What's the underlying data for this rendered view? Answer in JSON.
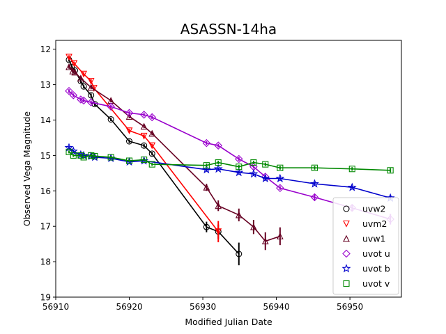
{
  "chart_data": {
    "type": "line",
    "title": "ASASSN-14ha",
    "xlabel": "Modified Julian Date",
    "ylabel": "Observed Vega Magnitude",
    "xlim": [
      56910,
      56957
    ],
    "ylim": [
      19,
      11.75
    ],
    "y_inverted": true,
    "xticks": [
      56910,
      56920,
      56930,
      56940,
      56950
    ],
    "yticks": [
      12,
      13,
      14,
      15,
      16,
      17,
      18,
      19
    ],
    "grid": false,
    "legend_position": "lower-right",
    "series": [
      {
        "name": "uvw2",
        "color": "#000000",
        "marker": "circle",
        "points": [
          {
            "x": 56911.8,
            "y": 12.3,
            "err": 0.05
          },
          {
            "x": 56912.2,
            "y": 12.5,
            "err": 0.05
          },
          {
            "x": 56912.6,
            "y": 12.6,
            "err": 0.05
          },
          {
            "x": 56913.4,
            "y": 12.9,
            "err": 0.05
          },
          {
            "x": 56913.8,
            "y": 13.05,
            "err": 0.05
          },
          {
            "x": 56914.8,
            "y": 13.3,
            "err": 0.05
          },
          {
            "x": 56915.3,
            "y": 13.55,
            "err": 0.05
          },
          {
            "x": 56917.5,
            "y": 13.98,
            "err": 0.05
          },
          {
            "x": 56920.0,
            "y": 14.6,
            "err": 0.05
          },
          {
            "x": 56922.0,
            "y": 14.72,
            "err": 0.05
          },
          {
            "x": 56923.1,
            "y": 14.95,
            "err": 0.05
          },
          {
            "x": 56930.5,
            "y": 17.02,
            "err": 0.15
          },
          {
            "x": 56932.1,
            "y": 17.15,
            "err": 0.2
          },
          {
            "x": 56934.9,
            "y": 17.78,
            "err": 0.32
          }
        ]
      },
      {
        "name": "uvm2",
        "color": "#ff0000",
        "marker": "triangle-down",
        "points": [
          {
            "x": 56911.8,
            "y": 12.22,
            "err": 0.05
          },
          {
            "x": 56912.5,
            "y": 12.4,
            "err": 0.05
          },
          {
            "x": 56913.8,
            "y": 12.7,
            "err": 0.05
          },
          {
            "x": 56914.8,
            "y": 12.9,
            "err": 0.05
          },
          {
            "x": 56915.2,
            "y": 13.1,
            "err": 0.05
          },
          {
            "x": 56920.0,
            "y": 14.3,
            "err": 0.05
          },
          {
            "x": 56922.0,
            "y": 14.45,
            "err": 0.05
          },
          {
            "x": 56923.1,
            "y": 14.72,
            "err": 0.05
          },
          {
            "x": 56932.1,
            "y": 17.15,
            "err": 0.3
          }
        ]
      },
      {
        "name": "uvw1",
        "color": "#660022",
        "marker": "triangle-up",
        "points": [
          {
            "x": 56911.8,
            "y": 12.5,
            "err": 0.05
          },
          {
            "x": 56912.3,
            "y": 12.62,
            "err": 0.05
          },
          {
            "x": 56912.6,
            "y": 12.65,
            "err": 0.05
          },
          {
            "x": 56913.4,
            "y": 12.82,
            "err": 0.05
          },
          {
            "x": 56914.8,
            "y": 13.08,
            "err": 0.05
          },
          {
            "x": 56917.5,
            "y": 13.45,
            "err": 0.05
          },
          {
            "x": 56920.0,
            "y": 13.9,
            "err": 0.05
          },
          {
            "x": 56922.0,
            "y": 14.18,
            "err": 0.05
          },
          {
            "x": 56923.1,
            "y": 14.38,
            "err": 0.05
          },
          {
            "x": 56930.5,
            "y": 15.9,
            "err": 0.1
          },
          {
            "x": 56932.1,
            "y": 16.42,
            "err": 0.15
          },
          {
            "x": 56934.9,
            "y": 16.68,
            "err": 0.18
          },
          {
            "x": 56936.9,
            "y": 17.02,
            "err": 0.2
          },
          {
            "x": 56938.5,
            "y": 17.42,
            "err": 0.25
          },
          {
            "x": 56940.5,
            "y": 17.28,
            "err": 0.25
          }
        ]
      },
      {
        "name": "uvot u",
        "color": "#9900cc",
        "marker": "diamond",
        "points": [
          {
            "x": 56911.8,
            "y": 13.18,
            "err": 0.05
          },
          {
            "x": 56912.4,
            "y": 13.3,
            "err": 0.05
          },
          {
            "x": 56913.4,
            "y": 13.42,
            "err": 0.05
          },
          {
            "x": 56913.8,
            "y": 13.45,
            "err": 0.05
          },
          {
            "x": 56914.8,
            "y": 13.5,
            "err": 0.05
          },
          {
            "x": 56917.5,
            "y": 13.62,
            "err": 0.05
          },
          {
            "x": 56920.0,
            "y": 13.8,
            "err": 0.05
          },
          {
            "x": 56922.0,
            "y": 13.85,
            "err": 0.05
          },
          {
            "x": 56923.1,
            "y": 13.92,
            "err": 0.05
          },
          {
            "x": 56930.5,
            "y": 14.65,
            "err": 0.05
          },
          {
            "x": 56932.1,
            "y": 14.72,
            "err": 0.05
          },
          {
            "x": 56934.9,
            "y": 15.1,
            "err": 0.05
          },
          {
            "x": 56936.9,
            "y": 15.32,
            "err": 0.05
          },
          {
            "x": 56938.5,
            "y": 15.6,
            "err": 0.05
          },
          {
            "x": 56940.5,
            "y": 15.92,
            "err": 0.05
          },
          {
            "x": 56945.2,
            "y": 16.18,
            "err": 0.08
          },
          {
            "x": 56950.3,
            "y": 16.48,
            "err": 0.1
          },
          {
            "x": 56955.5,
            "y": 16.8,
            "err": 0.15
          }
        ]
      },
      {
        "name": "uvot b",
        "color": "#0000cc",
        "marker": "star",
        "points": [
          {
            "x": 56911.8,
            "y": 14.78,
            "err": 0.04
          },
          {
            "x": 56912.4,
            "y": 14.88,
            "err": 0.04
          },
          {
            "x": 56913.4,
            "y": 14.98,
            "err": 0.04
          },
          {
            "x": 56913.8,
            "y": 15.0,
            "err": 0.04
          },
          {
            "x": 56914.8,
            "y": 15.02,
            "err": 0.04
          },
          {
            "x": 56915.3,
            "y": 15.05,
            "err": 0.04
          },
          {
            "x": 56917.5,
            "y": 15.08,
            "err": 0.04
          },
          {
            "x": 56920.0,
            "y": 15.18,
            "err": 0.04
          },
          {
            "x": 56922.0,
            "y": 15.15,
            "err": 0.04
          },
          {
            "x": 56930.5,
            "y": 15.4,
            "err": 0.04
          },
          {
            "x": 56932.1,
            "y": 15.38,
            "err": 0.04
          },
          {
            "x": 56934.9,
            "y": 15.48,
            "err": 0.04
          },
          {
            "x": 56936.9,
            "y": 15.52,
            "err": 0.04
          },
          {
            "x": 56938.5,
            "y": 15.65,
            "err": 0.04
          },
          {
            "x": 56940.5,
            "y": 15.65,
            "err": 0.04
          },
          {
            "x": 56945.2,
            "y": 15.8,
            "err": 0.05
          },
          {
            "x": 56950.3,
            "y": 15.9,
            "err": 0.05
          },
          {
            "x": 56955.5,
            "y": 16.2,
            "err": 0.06
          }
        ]
      },
      {
        "name": "uvot v",
        "color": "#008800",
        "marker": "square",
        "points": [
          {
            "x": 56911.8,
            "y": 14.9,
            "err": 0.04
          },
          {
            "x": 56912.4,
            "y": 15.0,
            "err": 0.04
          },
          {
            "x": 56913.4,
            "y": 15.0,
            "err": 0.04
          },
          {
            "x": 56913.8,
            "y": 15.05,
            "err": 0.04
          },
          {
            "x": 56914.8,
            "y": 15.0,
            "err": 0.04
          },
          {
            "x": 56915.3,
            "y": 15.02,
            "err": 0.04
          },
          {
            "x": 56917.5,
            "y": 15.05,
            "err": 0.04
          },
          {
            "x": 56920.0,
            "y": 15.15,
            "err": 0.04
          },
          {
            "x": 56922.0,
            "y": 15.12,
            "err": 0.04
          },
          {
            "x": 56923.1,
            "y": 15.25,
            "err": 0.04
          },
          {
            "x": 56930.5,
            "y": 15.28,
            "err": 0.05
          },
          {
            "x": 56932.1,
            "y": 15.2,
            "err": 0.05
          },
          {
            "x": 56934.9,
            "y": 15.32,
            "err": 0.05
          },
          {
            "x": 56936.9,
            "y": 15.2,
            "err": 0.05
          },
          {
            "x": 56938.5,
            "y": 15.25,
            "err": 0.05
          },
          {
            "x": 56940.5,
            "y": 15.35,
            "err": 0.05
          },
          {
            "x": 56945.2,
            "y": 15.35,
            "err": 0.05
          },
          {
            "x": 56950.3,
            "y": 15.38,
            "err": 0.05
          },
          {
            "x": 56955.5,
            "y": 15.42,
            "err": 0.06
          }
        ]
      }
    ]
  }
}
